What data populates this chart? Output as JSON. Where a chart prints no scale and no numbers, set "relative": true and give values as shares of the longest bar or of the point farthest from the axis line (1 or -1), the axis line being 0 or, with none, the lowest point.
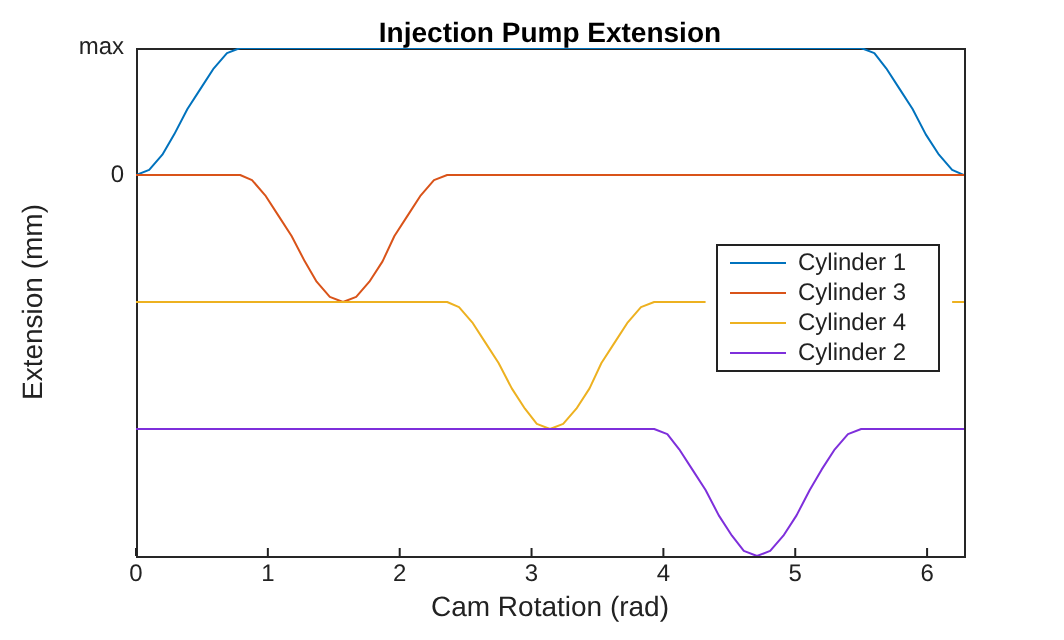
{
  "chart_data": {
    "type": "line",
    "title": "Injection Pump Extension",
    "xlabel": "Cam Rotation (rad)",
    "ylabel": "Extension (mm)",
    "relative": true,
    "annotations": [
      "max",
      "0"
    ],
    "x": [
      0,
      0.1,
      0.2,
      0.29,
      0.39,
      0.49,
      0.59,
      0.69,
      0.79,
      0.88,
      0.98,
      1.08,
      1.18,
      1.28,
      1.37,
      1.47,
      1.57,
      1.67,
      1.77,
      1.87,
      1.96,
      2.06,
      2.16,
      2.26,
      2.36,
      2.45,
      2.55,
      2.65,
      2.75,
      2.85,
      2.95,
      3.04,
      3.14,
      3.24,
      3.34,
      3.44,
      3.53,
      3.63,
      3.73,
      3.83,
      3.93,
      4.03,
      4.12,
      4.22,
      4.32,
      4.42,
      4.52,
      4.61,
      4.71,
      4.81,
      4.91,
      5.01,
      5.11,
      5.2,
      5.3,
      5.4,
      5.5,
      5.6,
      5.69,
      5.79,
      5.89,
      5.99,
      6.09,
      6.19,
      6.28
    ],
    "series": [
      {
        "name": "Cylinder 1",
        "color": "#0072bd",
        "values": [
          0.75,
          0.76,
          0.79,
          0.83,
          0.88,
          0.92,
          0.96,
          0.99,
          1,
          1,
          1,
          1,
          1,
          1,
          1,
          1,
          1,
          1,
          1,
          1,
          1,
          1,
          1,
          1,
          1,
          1,
          1,
          1,
          1,
          1,
          1,
          1,
          1,
          1,
          1,
          1,
          1,
          1,
          1,
          1,
          1,
          1,
          1,
          1,
          1,
          1,
          1,
          1,
          1,
          1,
          1,
          1,
          1,
          1,
          1,
          1,
          1,
          0.99,
          0.96,
          0.92,
          0.88,
          0.83,
          0.79,
          0.76,
          0.75
        ]
      },
      {
        "name": "Cylinder 3",
        "color": "#d95319",
        "values": [
          0.75,
          0.75,
          0.75,
          0.75,
          0.75,
          0.75,
          0.75,
          0.75,
          0.75,
          0.74,
          0.71,
          0.67,
          0.63,
          0.58,
          0.54,
          0.51,
          0.5,
          0.51,
          0.54,
          0.58,
          0.63,
          0.67,
          0.71,
          0.74,
          0.75,
          0.75,
          0.75,
          0.75,
          0.75,
          0.75,
          0.75,
          0.75,
          0.75,
          0.75,
          0.75,
          0.75,
          0.75,
          0.75,
          0.75,
          0.75,
          0.75,
          0.75,
          0.75,
          0.75,
          0.75,
          0.75,
          0.75,
          0.75,
          0.75,
          0.75,
          0.75,
          0.75,
          0.75,
          0.75,
          0.75,
          0.75,
          0.75,
          0.75,
          0.75,
          0.75,
          0.75,
          0.75,
          0.75,
          0.75,
          0.75
        ]
      },
      {
        "name": "Cylinder 4",
        "color": "#edb120",
        "values": [
          0.5,
          0.5,
          0.5,
          0.5,
          0.5,
          0.5,
          0.5,
          0.5,
          0.5,
          0.5,
          0.5,
          0.5,
          0.5,
          0.5,
          0.5,
          0.5,
          0.5,
          0.5,
          0.5,
          0.5,
          0.5,
          0.5,
          0.5,
          0.5,
          0.5,
          0.49,
          0.46,
          0.42,
          0.38,
          0.33,
          0.29,
          0.26,
          0.25,
          0.26,
          0.29,
          0.33,
          0.38,
          0.42,
          0.46,
          0.49,
          0.5,
          0.5,
          0.5,
          0.5,
          0.5,
          null,
          null,
          null,
          null,
          null,
          null,
          null,
          null,
          null,
          null,
          null,
          null,
          null,
          null,
          null,
          null,
          null,
          null,
          0.5,
          0.5
        ]
      },
      {
        "name": "Cylinder 2",
        "color": "#7e2fdb",
        "values": [
          0.25,
          0.25,
          0.25,
          0.25,
          0.25,
          0.25,
          0.25,
          0.25,
          0.25,
          0.25,
          0.25,
          0.25,
          0.25,
          0.25,
          0.25,
          0.25,
          0.25,
          0.25,
          0.25,
          0.25,
          0.25,
          0.25,
          0.25,
          0.25,
          0.25,
          0.25,
          0.25,
          0.25,
          0.25,
          0.25,
          0.25,
          0.25,
          0.25,
          0.25,
          0.25,
          0.25,
          0.25,
          0.25,
          0.25,
          0.25,
          0.25,
          0.24,
          0.21,
          0.17,
          0.13,
          0.08,
          0.04,
          0.01,
          0,
          0.01,
          0.04,
          0.08,
          0.13,
          0.17,
          0.21,
          0.24,
          0.25,
          0.25,
          0.25,
          0.25,
          0.25,
          0.25,
          0.25,
          0.25,
          0.25
        ]
      }
    ],
    "xlim": [
      0,
      6.28
    ],
    "xticks": [
      0,
      1,
      2,
      3,
      4,
      5,
      6
    ],
    "legend": "right",
    "marker": "none",
    "line_style": "solid"
  }
}
